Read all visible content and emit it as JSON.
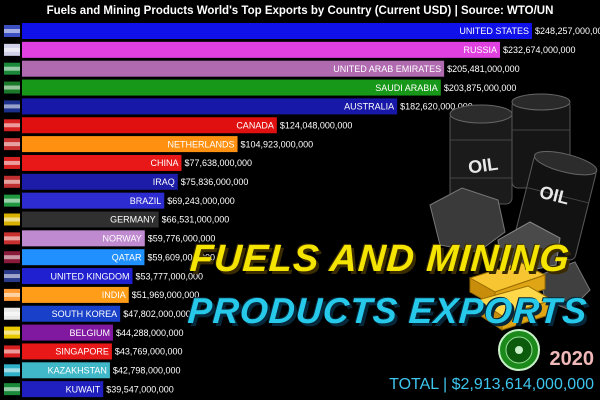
{
  "header": {
    "title": "Fuels and Mining Products World's Top Exports by Country (Current USD) | Source: WTO/UN"
  },
  "overlay": {
    "headline_line1": "FUELS AND MINING",
    "headline_line2": "PRODUCTS EXPORTS",
    "year": "2020",
    "total": "TOTAL | $2,913,614,000,000",
    "barrel_text": "OIL"
  },
  "chart_data": {
    "type": "bar",
    "orientation": "horizontal",
    "title": "Fuels and Mining Products World's Top Exports by Country (Current USD) | Source: WTO/UN",
    "xlim": [
      0,
      248257000000
    ],
    "categories": [
      "UNITED STATES",
      "RUSSIA",
      "UNITED ARAB EMIRATES",
      "SAUDI ARABIA",
      "AUSTRALIA",
      "CANADA",
      "NETHERLANDS",
      "CHINA",
      "IRAQ",
      "BRAZIL",
      "GERMANY",
      "NORWAY",
      "QATAR",
      "UNITED KINGDOM",
      "INDIA",
      "SOUTH KOREA",
      "BELGIUM",
      "SINGAPORE",
      "KAZAKHSTAN",
      "KUWAIT"
    ],
    "values": [
      248257000000,
      232674000000,
      205481000000,
      203875000000,
      182620000000,
      124048000000,
      104923000000,
      77638000000,
      75836000000,
      69243000000,
      66531000000,
      59776000000,
      59609000000,
      53777000000,
      51969000000,
      47802000000,
      44288000000,
      43769000000,
      42798000000,
      39547000000
    ],
    "value_labels": [
      "$248,257,000,000",
      "$232,674,000,000",
      "$205,481,000,000",
      "$203,875,000,000",
      "$182,620,000,000",
      "$124,048,000,000",
      "$104,923,000,000",
      "$77,638,000,000",
      "$75,836,000,000",
      "$69,243,000,000",
      "$66,531,000,000",
      "$59,776,000,000",
      "$59,609,000,000",
      "$53,777,000,000",
      "$51,969,000,000",
      "$47,802,000,000",
      "$44,288,000,000",
      "$43,769,000,000",
      "$42,798,000,000",
      "$39,547,000,000"
    ],
    "colors": [
      "#1010e8",
      "#e040e0",
      "#b06ab0",
      "#189818",
      "#1818a8",
      "#e01010",
      "#ff9010",
      "#e81818",
      "#1c1ca8",
      "#2c2cd0",
      "#303030",
      "#c08ad0",
      "#2090ff",
      "#2020d0",
      "#ff9c18",
      "#1840c8",
      "#8018a0",
      "#e81818",
      "#40b8c8",
      "#2020c0"
    ],
    "flag_colors": [
      "#3b4fc0",
      "#d0d0e8",
      "#1a8a3a",
      "#1a7a2a",
      "#1c2f8a",
      "#d42020",
      "#c83030",
      "#d82020",
      "#c03030",
      "#209840",
      "#d8b000",
      "#c83030",
      "#8a1a3a",
      "#2a3a8a",
      "#ff9933",
      "#e8e8e8",
      "#e8c800",
      "#d82020",
      "#30b0c8",
      "#1a8a3a"
    ]
  }
}
